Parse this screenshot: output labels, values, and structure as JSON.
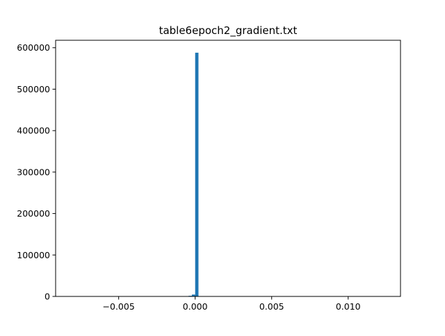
{
  "chart_data": {
    "type": "bar",
    "title": "table6epoch2_gradient.txt",
    "xlabel": "",
    "ylabel": "",
    "xlim": [
      -0.00912,
      0.01342
    ],
    "ylim": [
      0,
      618000
    ],
    "grid": false,
    "legend": "none",
    "xticks": [
      {
        "value": -0.005,
        "label": "−0.005"
      },
      {
        "value": 0.0,
        "label": "0.000"
      },
      {
        "value": 0.005,
        "label": "0.005"
      },
      {
        "value": 0.01,
        "label": "0.010"
      }
    ],
    "yticks": [
      {
        "value": 0,
        "label": "0"
      },
      {
        "value": 100000,
        "label": "100000"
      },
      {
        "value": 200000,
        "label": "200000"
      },
      {
        "value": 300000,
        "label": "300000"
      },
      {
        "value": 400000,
        "label": "400000"
      },
      {
        "value": 500000,
        "label": "500000"
      },
      {
        "value": 600000,
        "label": "600000"
      }
    ],
    "bin_width": 0.000216,
    "bins": [
      {
        "x0": -0.000432,
        "count": 1500
      },
      {
        "x0": -0.000216,
        "count": 4500
      },
      {
        "x0": 0.0,
        "count": 588000
      },
      {
        "x0": 0.000216,
        "count": 500
      }
    ],
    "bar_color": "#1f77b4"
  }
}
